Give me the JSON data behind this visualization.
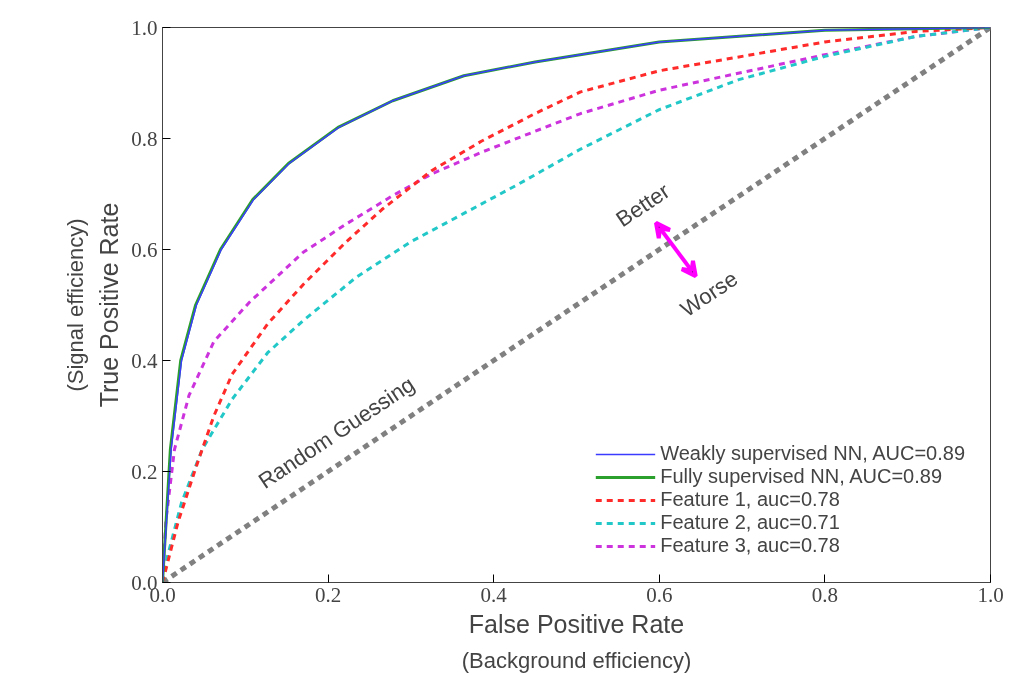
{
  "chart_data": {
    "type": "line",
    "xlabel": "False Positive Rate",
    "ylabel": "True Positive Rate",
    "xlim": [
      0,
      1
    ],
    "ylim": [
      0,
      1
    ],
    "xticks": [
      {
        "value": 0,
        "label": "0.0"
      },
      0.2,
      0.4,
      0.6,
      0.8,
      {
        "value": 1,
        "label": "1.0"
      }
    ],
    "yticks": [
      {
        "value": 0,
        "label": "0.0"
      },
      0.2,
      0.4,
      0.6,
      0.8,
      {
        "value": 1,
        "label": "1.0"
      }
    ],
    "grid": false,
    "legend": "bottom right",
    "series": [
      {
        "name": "Weakly supervised NN, AUC=0.89",
        "color": "#3b3bff",
        "line_style": "solid",
        "x": [
          0,
          0.0105,
          0.023,
          0.041,
          0.071,
          0.11,
          0.153,
          0.213,
          0.278,
          0.364,
          0.45,
          0.6,
          0.8,
          1
        ],
        "values": [
          0,
          0.24,
          0.4,
          0.5,
          0.6,
          0.69,
          0.755,
          0.82,
          0.868,
          0.913,
          0.938,
          0.974,
          0.995,
          1
        ]
      },
      {
        "name": "Fully supervised NN, AUC=0.89",
        "color": "#2ca02c",
        "line_style": "solid",
        "x": [
          0,
          0.0095,
          0.022,
          0.04,
          0.07,
          0.109,
          0.152,
          0.212,
          0.278,
          0.364,
          0.45,
          0.6,
          0.8,
          1
        ],
        "values": [
          0,
          0.24,
          0.4,
          0.5,
          0.6,
          0.69,
          0.755,
          0.82,
          0.868,
          0.913,
          0.938,
          0.974,
          0.995,
          1
        ]
      },
      {
        "name": "Feature 1, auc=0.78",
        "color": "#ff2a2a",
        "line_style": "dashed",
        "x": [
          0,
          0.019,
          0.041,
          0.062,
          0.084,
          0.127,
          0.17,
          0.222,
          0.265,
          0.325,
          0.385,
          0.45,
          0.505,
          0.6,
          0.8,
          0.91,
          1
        ],
        "values": [
          0,
          0.11,
          0.21,
          0.3,
          0.375,
          0.466,
          0.537,
          0.614,
          0.672,
          0.742,
          0.795,
          0.845,
          0.884,
          0.922,
          0.974,
          0.993,
          1
        ]
      },
      {
        "name": "Feature 2, auc=0.71",
        "color": "#22c8c8",
        "line_style": "dashed",
        "x": [
          0,
          0.006,
          0.023,
          0.048,
          0.084,
          0.127,
          0.17,
          0.234,
          0.3,
          0.364,
          0.429,
          0.505,
          0.6,
          0.696,
          0.8,
          0.91,
          1
        ],
        "values": [
          0,
          0.047,
          0.144,
          0.24,
          0.33,
          0.414,
          0.472,
          0.55,
          0.614,
          0.665,
          0.717,
          0.781,
          0.852,
          0.906,
          0.948,
          0.984,
          1
        ]
      },
      {
        "name": "Feature 3, auc=0.78",
        "color": "#cc33dd",
        "line_style": "dashed",
        "x": [
          0,
          0.004,
          0.0145,
          0.032,
          0.062,
          0.105,
          0.17,
          0.222,
          0.278,
          0.325,
          0.385,
          0.45,
          0.505,
          0.6,
          0.8,
          0.91,
          1
        ],
        "values": [
          0,
          0.11,
          0.24,
          0.337,
          0.434,
          0.505,
          0.595,
          0.646,
          0.697,
          0.736,
          0.775,
          0.813,
          0.845,
          0.887,
          0.951,
          0.984,
          1
        ]
      },
      {
        "color": "#808080",
        "line_style": "dashed",
        "x": [
          0,
          1
        ],
        "values": [
          0,
          1
        ]
      }
    ],
    "annotations": [
      "Random Guessing",
      "Better",
      "Worse",
      "(Background efficiency)",
      "(Signal efficiency)"
    ]
  }
}
